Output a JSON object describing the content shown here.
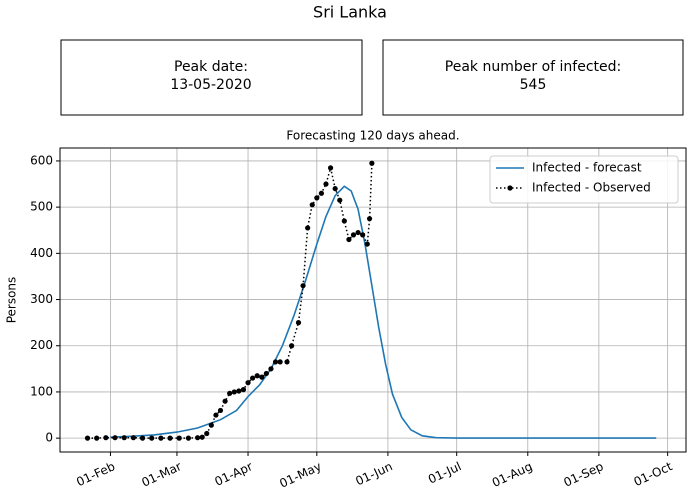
{
  "title": "Sri Lanka",
  "boxes": [
    {
      "label": "Peak date:",
      "value": "13-05-2020"
    },
    {
      "label": "Peak number of infected:",
      "value": 545
    }
  ],
  "chart_data": {
    "type": "line",
    "title": "Forecasting 120 days ahead.",
    "y_label": "Persons",
    "xlim": [
      "10-Jan",
      "09-Oct"
    ],
    "xticks": [
      "01-Feb",
      "01-Mar",
      "01-Apr",
      "01-May",
      "01-Jun",
      "01-Jul",
      "01-Aug",
      "01-Sep",
      "01-Oct"
    ],
    "ylim": [
      -30,
      628
    ],
    "yticks": [
      0,
      100,
      200,
      300,
      400,
      500,
      600
    ],
    "grid": true,
    "legend": "upper right",
    "series": [
      {
        "name": "Infected - forecast",
        "color": "#1f77b4",
        "style": "solid",
        "x": [
          "01-Feb",
          "10-Feb",
          "20-Feb",
          "01-Mar",
          "10-Mar",
          "20-Mar",
          "27-Mar",
          "01-Apr",
          "06-Apr",
          "11-Apr",
          "16-Apr",
          "21-Apr",
          "26-Apr",
          "01-May",
          "05-May",
          "09-May",
          "13-May",
          "16-May",
          "19-May",
          "22-May",
          "25-May",
          "28-May",
          "31-May",
          "03-Jun",
          "07-Jun",
          "11-Jun",
          "16-Jun",
          "22-Jun",
          "01-Jul",
          "01-Aug",
          "01-Sep",
          "26-Sep"
        ],
        "values": [
          2,
          4,
          7,
          13,
          22,
          40,
          60,
          90,
          115,
          150,
          200,
          265,
          340,
          420,
          480,
          525,
          545,
          535,
          495,
          420,
          330,
          240,
          160,
          95,
          45,
          18,
          5,
          1,
          0,
          0,
          0,
          0
        ]
      },
      {
        "name": "Infected - Observed",
        "color": "#000000",
        "style": "dotted",
        "x": [
          "22-Jan",
          "26-Jan",
          "30-Jan",
          "03-Feb",
          "07-Feb",
          "11-Feb",
          "15-Feb",
          "19-Feb",
          "23-Feb",
          "27-Feb",
          "02-Mar",
          "06-Mar",
          "10-Mar",
          "12-Mar",
          "14-Mar",
          "16-Mar",
          "18-Mar",
          "20-Mar",
          "22-Mar",
          "24-Mar",
          "26-Mar",
          "28-Mar",
          "30-Mar",
          "01-Apr",
          "03-Apr",
          "05-Apr",
          "07-Apr",
          "09-Apr",
          "11-Apr",
          "13-Apr",
          "15-Apr",
          "18-Apr",
          "20-Apr",
          "23-Apr",
          "25-Apr",
          "27-Apr",
          "29-Apr",
          "01-May",
          "03-May",
          "05-May",
          "07-May",
          "09-May",
          "11-May",
          "13-May",
          "15-May",
          "17-May",
          "19-May",
          "21-May",
          "23-May",
          "24-May",
          "25-May"
        ],
        "values": [
          0,
          0,
          1,
          1,
          1,
          1,
          0,
          0,
          0,
          0,
          0,
          0,
          1,
          2,
          10,
          28,
          50,
          60,
          80,
          97,
          100,
          102,
          105,
          120,
          130,
          135,
          132,
          140,
          150,
          165,
          165,
          165,
          200,
          250,
          330,
          455,
          505,
          520,
          530,
          550,
          585,
          540,
          515,
          470,
          430,
          440,
          445,
          440,
          420,
          475,
          595
        ]
      }
    ]
  }
}
